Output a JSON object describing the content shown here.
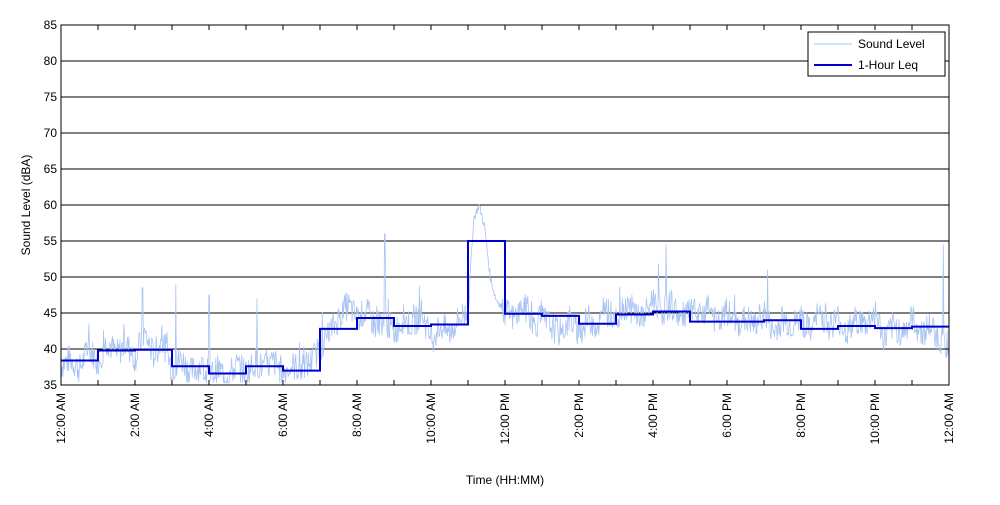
{
  "chart_data": {
    "type": "line",
    "xlabel": "Time (HH:MM)",
    "ylabel": "Sound Level (dBA)",
    "xlim": [
      0,
      24
    ],
    "ylim": [
      35,
      85
    ],
    "y_ticks": [
      35,
      40,
      45,
      50,
      55,
      60,
      65,
      70,
      75,
      80,
      85
    ],
    "x_ticks": [
      {
        "hour": 0,
        "label": "12:00 AM"
      },
      {
        "hour": 2,
        "label": "2:00 AM"
      },
      {
        "hour": 4,
        "label": "4:00 AM"
      },
      {
        "hour": 6,
        "label": "6:00 AM"
      },
      {
        "hour": 8,
        "label": "8:00 AM"
      },
      {
        "hour": 10,
        "label": "10:00 AM"
      },
      {
        "hour": 12,
        "label": "12:00 PM"
      },
      {
        "hour": 14,
        "label": "2:00 PM"
      },
      {
        "hour": 16,
        "label": "4:00 PM"
      },
      {
        "hour": 18,
        "label": "6:00 PM"
      },
      {
        "hour": 20,
        "label": "8:00 PM"
      },
      {
        "hour": 22,
        "label": "10:00 PM"
      },
      {
        "hour": 24,
        "label": "12:00 AM"
      }
    ],
    "grid": "horizontal",
    "legend_position": "top-right",
    "series": [
      {
        "name": "Sound Level",
        "color": "#a9c4f2",
        "style": "thin-line",
        "x": [
          0,
          0.25,
          0.5,
          0.75,
          1,
          1.25,
          1.5,
          1.75,
          2,
          2.25,
          2.5,
          2.75,
          3,
          3.25,
          3.5,
          3.75,
          4,
          4.25,
          4.5,
          4.75,
          5,
          5.25,
          5.5,
          5.75,
          6,
          6.25,
          6.5,
          6.75,
          7,
          7.25,
          7.5,
          7.75,
          8,
          8.25,
          8.5,
          8.75,
          9,
          9.25,
          9.5,
          9.75,
          10,
          10.25,
          10.5,
          10.75,
          11,
          11.15,
          11.3,
          11.45,
          11.6,
          11.75,
          11.9,
          12,
          12.25,
          12.5,
          12.75,
          13,
          13.25,
          13.5,
          13.75,
          14,
          14.25,
          14.5,
          14.75,
          15,
          15.25,
          15.5,
          15.75,
          16,
          16.25,
          16.5,
          16.75,
          17,
          17.25,
          17.5,
          17.75,
          18,
          18.25,
          18.5,
          18.75,
          19,
          19.25,
          19.5,
          19.75,
          20,
          20.25,
          20.5,
          20.75,
          21,
          21.25,
          21.5,
          21.75,
          22,
          22.25,
          22.5,
          22.75,
          23,
          23.25,
          23.5,
          23.75,
          24
        ],
        "y": [
          37.5,
          38.5,
          37,
          40,
          38,
          41,
          39,
          40.5,
          38.5,
          42,
          39,
          41,
          37,
          38.5,
          36.5,
          37.5,
          36,
          37,
          36,
          37.5,
          36.5,
          38,
          37,
          38,
          36.5,
          37.5,
          37,
          38,
          40,
          42,
          44,
          46,
          44,
          45,
          43,
          44,
          42,
          44,
          43,
          45,
          41,
          43,
          42,
          44,
          45,
          58,
          60,
          57,
          50,
          47,
          46,
          45,
          44,
          46,
          43,
          44,
          43,
          42,
          44,
          42,
          44,
          43,
          45,
          44,
          46,
          45,
          44,
          47,
          45,
          46,
          44,
          45,
          44,
          46,
          43,
          45,
          43,
          44,
          43,
          45,
          42,
          44,
          43,
          44,
          42,
          45,
          43,
          44,
          42,
          44,
          43,
          45,
          41,
          43,
          42,
          44,
          42,
          43,
          41,
          40.5
        ],
        "peaks": [
          {
            "x": 2.2,
            "y": 48.5
          },
          {
            "x": 3.1,
            "y": 49
          },
          {
            "x": 4.0,
            "y": 47.5
          },
          {
            "x": 5.3,
            "y": 47
          },
          {
            "x": 8.75,
            "y": 56
          },
          {
            "x": 16.35,
            "y": 54.5
          },
          {
            "x": 19.1,
            "y": 51
          },
          {
            "x": 23.85,
            "y": 54.5
          }
        ]
      },
      {
        "name": "1-Hour Leq",
        "color": "#0000cc",
        "style": "step",
        "x": [
          0,
          1,
          2,
          3,
          4,
          5,
          6,
          7,
          8,
          9,
          10,
          11,
          12,
          13,
          14,
          15,
          16,
          17,
          18,
          19,
          20,
          21,
          22,
          23,
          24
        ],
        "y": [
          38.4,
          39.8,
          39.9,
          37.6,
          36.6,
          37.6,
          37.0,
          42.8,
          44.3,
          43.2,
          43.4,
          55.0,
          44.9,
          44.6,
          43.5,
          44.8,
          45.2,
          43.8,
          43.8,
          44.0,
          42.8,
          43.2,
          42.9,
          43.1,
          43.1
        ]
      }
    ]
  }
}
